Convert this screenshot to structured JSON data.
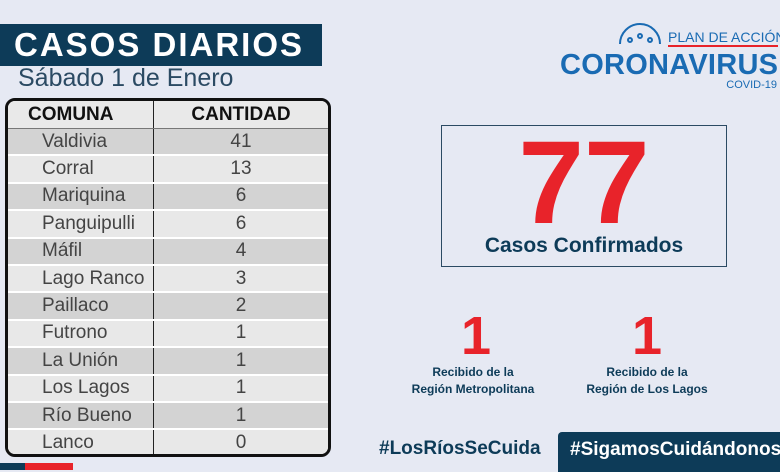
{
  "header": {
    "title": "CASOS DIARIOS",
    "subtitle": "Sábado 1 de Enero"
  },
  "table": {
    "columns": [
      "COMUNA",
      "CANTIDAD"
    ],
    "rows": [
      [
        "Valdivia",
        "41"
      ],
      [
        "Corral",
        "13"
      ],
      [
        "Mariquina",
        "6"
      ],
      [
        "Panguipulli",
        "6"
      ],
      [
        "Máfil",
        "4"
      ],
      [
        "Lago Ranco",
        "3"
      ],
      [
        "Paillaco",
        "2"
      ],
      [
        "Futrono",
        "1"
      ],
      [
        "La Unión",
        "1"
      ],
      [
        "Los Lagos",
        "1"
      ],
      [
        "Río Bueno",
        "1"
      ],
      [
        "Lanco",
        "0"
      ]
    ]
  },
  "logo": {
    "line1": "PLAN DE ACCIÓN",
    "line2": "CORONAVIRUS",
    "line3": "COVID-19"
  },
  "total": {
    "value": "77",
    "label": "Casos Confirmados"
  },
  "transfers": [
    {
      "value": "1",
      "label1": "Recibido de la",
      "label2": "Región Metropolitana"
    },
    {
      "value": "1",
      "label1": "Recibido  de la",
      "label2": "Región de Los Lagos"
    }
  ],
  "hashtags": [
    "#LosRíosSeCuida",
    "#SigamosCuidándonos"
  ],
  "colors": {
    "navy": "#0d3b58",
    "red": "#e8232a",
    "blue": "#1a6bb3",
    "background": "#e6e9f3"
  }
}
